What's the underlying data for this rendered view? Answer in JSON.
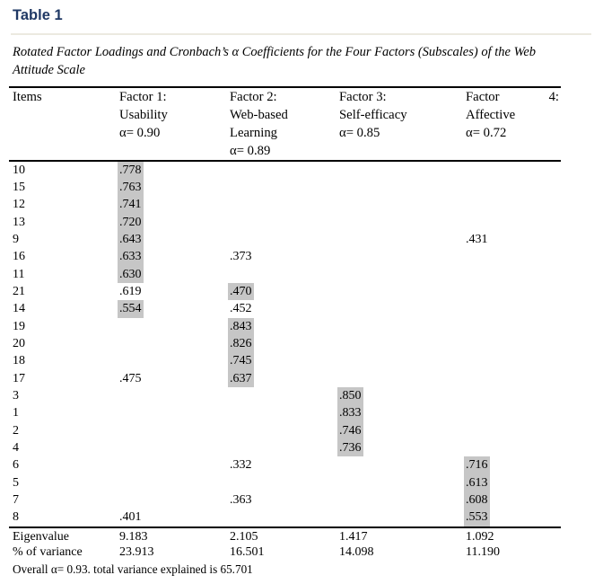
{
  "title": "Table 1",
  "caption": "Rotated Factor Loadings and Cronbach’s α Coefficients for the Four Factors (Subscales) of the Web Attitude Scale",
  "colors": {
    "title_blue": "#1F3864",
    "highlight_gray": "#C6C6C6",
    "divider_gray": "#ECEAE0"
  },
  "table": {
    "columns": [
      {
        "key": "item",
        "header_lines": [
          "Items"
        ]
      },
      {
        "key": "f1",
        "header_lines": [
          "Factor 1:",
          "Usability",
          "α= 0.90"
        ]
      },
      {
        "key": "f2",
        "header_lines": [
          "Factor 2:",
          "Web-based",
          "Learning",
          "α= 0.89"
        ]
      },
      {
        "key": "f3",
        "header_lines": [
          "Factor 3:",
          "Self-efficacy",
          "α= 0.85"
        ]
      },
      {
        "key": "f4",
        "header_lines": [
          {
            "left": "Factor",
            "right": "4:"
          },
          "Affective",
          "α= 0.72"
        ]
      }
    ],
    "rows": [
      {
        "item": "10",
        "f1": ".778",
        "hl": [
          "f1"
        ]
      },
      {
        "item": "15",
        "f1": ".763",
        "hl": [
          "f1"
        ]
      },
      {
        "item": "12",
        "f1": ".741",
        "hl": [
          "f1"
        ]
      },
      {
        "item": "13",
        "f1": ".720",
        "hl": [
          "f1"
        ]
      },
      {
        "item": "9",
        "f1": ".643",
        "f4": ".431",
        "hl": [
          "f1"
        ]
      },
      {
        "item": "16",
        "f1": ".633",
        "f2": ".373",
        "hl": [
          "f1"
        ]
      },
      {
        "item": "11",
        "f1": ".630",
        "hl": [
          "f1"
        ]
      },
      {
        "item": "21",
        "f1": ".619",
        "f2": ".470",
        "hl": [
          "f2"
        ]
      },
      {
        "item": "14",
        "f1": ".554",
        "f2": ".452",
        "hl": [
          "f1"
        ]
      },
      {
        "item": "19",
        "f2": ".843",
        "hl": [
          "f2"
        ]
      },
      {
        "item": "20",
        "f2": ".826",
        "hl": [
          "f2"
        ]
      },
      {
        "item": "18",
        "f2": ".745",
        "hl": [
          "f2"
        ]
      },
      {
        "item": "17",
        "f1": ".475",
        "f2": ".637",
        "hl": [
          "f2"
        ]
      },
      {
        "item": "3",
        "f3": ".850",
        "hl": [
          "f3"
        ]
      },
      {
        "item": "1",
        "f3": ".833",
        "hl": [
          "f3"
        ]
      },
      {
        "item": "2",
        "f3": ".746",
        "hl": [
          "f3"
        ]
      },
      {
        "item": "4",
        "f3": ".736",
        "hl": [
          "f3"
        ]
      },
      {
        "item": "6",
        "f2": ".332",
        "f4": ".716",
        "hl": [
          "f4"
        ]
      },
      {
        "item": "5",
        "f4": ".613",
        "hl": [
          "f4"
        ]
      },
      {
        "item": "7",
        "f2": ".363",
        "f4": ".608",
        "hl": [
          "f4"
        ]
      },
      {
        "item": "8",
        "f1": ".401",
        "f4": ".553",
        "hl": [
          "f4"
        ]
      }
    ],
    "footer": [
      {
        "label": "Eigenvalue",
        "values": [
          "9.183",
          "2.105",
          "1.417",
          "1.092"
        ]
      },
      {
        "label": "% of variance",
        "values": [
          "23.913",
          "16.501",
          "14.098",
          "11.190"
        ]
      }
    ],
    "note": "Overall α= 0.93. total variance explained is 65.701"
  }
}
